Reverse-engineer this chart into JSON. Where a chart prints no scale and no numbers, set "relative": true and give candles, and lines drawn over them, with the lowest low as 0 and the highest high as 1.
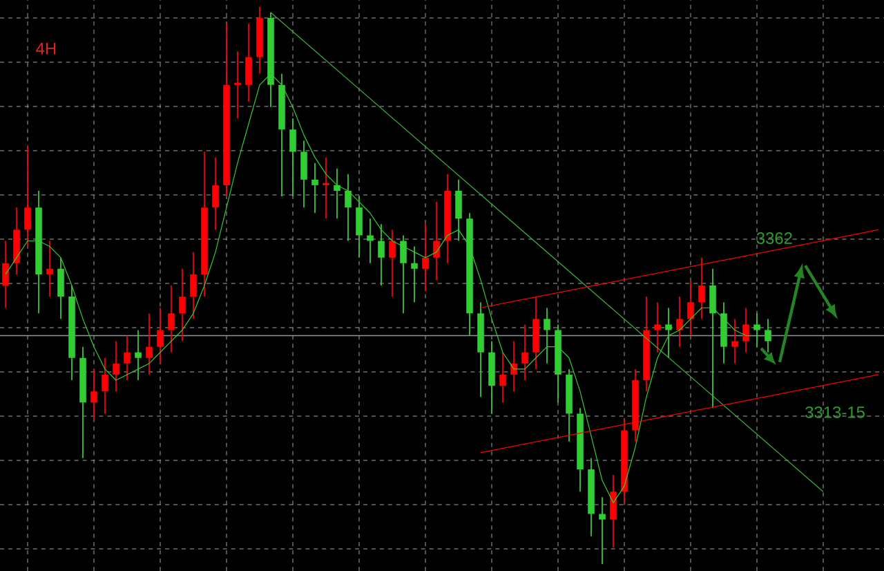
{
  "chart_data": {
    "type": "candlestick",
    "relative": true,
    "grid": true,
    "annotations": [
      "4H",
      "3362",
      "3313-15"
    ],
    "categories": [
      null,
      null,
      null,
      null,
      null,
      null,
      null,
      null,
      null,
      null,
      null,
      null,
      null,
      null,
      null,
      null,
      null,
      null,
      null,
      null,
      null,
      null,
      null,
      null,
      null,
      null,
      null,
      null,
      null,
      null,
      null,
      null,
      null,
      null,
      null,
      null,
      null,
      null,
      null,
      null,
      null,
      null,
      null,
      null,
      null,
      null,
      null,
      null,
      null,
      null,
      null,
      null,
      null,
      null,
      null,
      null,
      null,
      null,
      null,
      null,
      null,
      null,
      null,
      null,
      null,
      null,
      null,
      null,
      null,
      null,
      null,
      null,
      null,
      null,
      null,
      null,
      null,
      null,
      null,
      null
    ],
    "colors": [
      "#ff0000",
      "#ff0000",
      "#ff0000",
      "#32cd32",
      "#ff0000",
      "#32cd32",
      "#32cd32",
      "#32cd32",
      "#ff0000",
      "#ff0000",
      "#ff0000",
      "#ff0000",
      "#32cd32",
      "#ff0000",
      "#ff0000",
      "#ff0000",
      "#ff0000",
      "#ff0000",
      "#ff0000",
      "#ff0000",
      "#ff0000",
      "#ff0000",
      "#ff0000",
      "#ff0000",
      "#32cd32",
      "#32cd32",
      "#32cd32",
      "#32cd32",
      "#32cd32",
      "#ff0000",
      "#32cd32",
      "#32cd32",
      "#32cd32",
      "#32cd32",
      "#32cd32",
      "#ff0000",
      "#32cd32",
      "#32cd32",
      "#ff0000",
      "#ff0000",
      "#ff0000",
      "#32cd32",
      "#32cd32",
      "#32cd32",
      "#32cd32",
      "#ff0000",
      "#ff0000",
      "#ff0000",
      "#ff0000",
      "#32cd32",
      "#32cd32",
      "#32cd32",
      "#32cd32",
      "#32cd32",
      "#32cd32",
      "#ff0000",
      "#ff0000",
      "#ff0000",
      "#ff0000",
      "#ff0000",
      "#32cd32",
      "#ff0000",
      "#ff0000",
      "#ff0000",
      "#32cd32",
      "#32cd32",
      "#ff0000",
      "#ff0000",
      "#32cd32",
      "#32cd32",
      null,
      null,
      null,
      null,
      null,
      null,
      null,
      null,
      null,
      null
    ],
    "ohlc": [
      [
        0.5,
        0.58,
        0.46,
        0.54
      ],
      [
        0.54,
        0.64,
        0.52,
        0.6
      ],
      [
        0.6,
        0.75,
        0.57,
        0.64
      ],
      [
        0.64,
        0.67,
        0.45,
        0.52
      ],
      [
        0.52,
        0.58,
        0.48,
        0.53
      ],
      [
        0.53,
        0.55,
        0.44,
        0.48
      ],
      [
        0.48,
        0.5,
        0.33,
        0.37
      ],
      [
        0.37,
        0.39,
        0.19,
        0.29
      ],
      [
        0.29,
        0.35,
        0.26,
        0.31
      ],
      [
        0.31,
        0.37,
        0.27,
        0.34
      ],
      [
        0.34,
        0.4,
        0.31,
        0.36
      ],
      [
        0.36,
        0.41,
        0.33,
        0.38
      ],
      [
        0.38,
        0.42,
        0.33,
        0.37
      ],
      [
        0.37,
        0.45,
        0.34,
        0.39
      ],
      [
        0.39,
        0.46,
        0.36,
        0.42
      ],
      [
        0.42,
        0.5,
        0.38,
        0.45
      ],
      [
        0.45,
        0.53,
        0.4,
        0.48
      ],
      [
        0.48,
        0.56,
        0.44,
        0.52
      ],
      [
        0.52,
        0.74,
        0.48,
        0.64
      ],
      [
        0.64,
        0.73,
        0.6,
        0.68
      ],
      [
        0.68,
        0.97,
        0.66,
        0.86
      ],
      [
        0.86,
        0.92,
        0.8,
        0.86
      ],
      [
        0.86,
        0.97,
        0.83,
        0.91
      ],
      [
        0.91,
        1.0,
        0.88,
        0.98
      ],
      [
        0.98,
        0.99,
        0.82,
        0.86
      ],
      [
        0.86,
        0.88,
        0.66,
        0.78
      ],
      [
        0.78,
        0.8,
        0.66,
        0.74
      ],
      [
        0.74,
        0.76,
        0.64,
        0.69
      ],
      [
        0.69,
        0.72,
        0.63,
        0.68
      ],
      [
        0.68,
        0.73,
        0.62,
        0.68
      ],
      [
        0.68,
        0.71,
        0.62,
        0.67
      ],
      [
        0.67,
        0.7,
        0.58,
        0.64
      ],
      [
        0.64,
        0.66,
        0.55,
        0.59
      ],
      [
        0.59,
        0.62,
        0.54,
        0.58
      ],
      [
        0.58,
        0.61,
        0.5,
        0.55
      ],
      [
        0.55,
        0.6,
        0.48,
        0.58
      ],
      [
        0.58,
        0.59,
        0.45,
        0.54
      ],
      [
        0.54,
        0.57,
        0.47,
        0.53
      ],
      [
        0.53,
        0.61,
        0.49,
        0.55
      ],
      [
        0.55,
        0.65,
        0.51,
        0.58
      ],
      [
        0.58,
        0.7,
        0.54,
        0.67
      ],
      [
        0.67,
        0.69,
        0.58,
        0.62
      ],
      [
        0.62,
        0.63,
        0.41,
        0.45
      ],
      [
        0.45,
        0.47,
        0.3,
        0.38
      ],
      [
        0.38,
        0.4,
        0.27,
        0.32
      ],
      [
        0.32,
        0.38,
        0.29,
        0.34
      ],
      [
        0.34,
        0.4,
        0.31,
        0.36
      ],
      [
        0.36,
        0.43,
        0.33,
        0.38
      ],
      [
        0.38,
        0.48,
        0.35,
        0.44
      ],
      [
        0.44,
        0.46,
        0.36,
        0.42
      ],
      [
        0.42,
        0.43,
        0.29,
        0.34
      ],
      [
        0.34,
        0.35,
        0.22,
        0.27
      ],
      [
        0.27,
        0.28,
        0.13,
        0.17
      ],
      [
        0.17,
        0.19,
        0.05,
        0.09
      ],
      [
        0.09,
        0.12,
        0.0,
        0.08
      ],
      [
        0.08,
        0.16,
        0.03,
        0.13
      ],
      [
        0.13,
        0.26,
        0.11,
        0.24
      ],
      [
        0.24,
        0.35,
        0.22,
        0.33
      ],
      [
        0.33,
        0.48,
        0.31,
        0.42
      ],
      [
        0.42,
        0.47,
        0.38,
        0.43
      ],
      [
        0.43,
        0.46,
        0.37,
        0.42
      ],
      [
        0.42,
        0.48,
        0.39,
        0.44
      ],
      [
        0.44,
        0.51,
        0.41,
        0.47
      ],
      [
        0.47,
        0.55,
        0.44,
        0.5
      ],
      [
        0.5,
        0.53,
        0.28,
        0.45
      ],
      [
        0.45,
        0.47,
        0.36,
        0.39
      ],
      [
        0.39,
        0.44,
        0.36,
        0.4
      ],
      [
        0.4,
        0.46,
        0.38,
        0.43
      ],
      [
        0.43,
        0.45,
        0.39,
        0.42
      ],
      [
        0.42,
        0.44,
        0.38,
        0.4
      ],
      null,
      null,
      null,
      null,
      null,
      null,
      null,
      null,
      null,
      null
    ],
    "ref_lines": [
      {
        "axis": "y",
        "value": 0.41,
        "color": "#8c96a0"
      }
    ],
    "series": [
      {
        "type": "line",
        "color": "#32cd32",
        "values": [
          0.52,
          0.55,
          0.58,
          0.58,
          0.57,
          0.55,
          0.5,
          0.44,
          0.39,
          0.35,
          0.33,
          0.34,
          0.35,
          0.36,
          0.38,
          0.4,
          0.42,
          0.45,
          0.5,
          0.56,
          0.64,
          0.72,
          0.79,
          0.86,
          0.88,
          0.86,
          0.82,
          0.77,
          0.73,
          0.7,
          0.68,
          0.67,
          0.65,
          0.63,
          0.6,
          0.58,
          0.57,
          0.56,
          0.55,
          0.56,
          0.59,
          0.6,
          0.57,
          0.51,
          0.44,
          0.38,
          0.35,
          0.35,
          0.37,
          0.39,
          0.39,
          0.37,
          0.31,
          0.23,
          0.15,
          0.11,
          0.14,
          0.21,
          0.3,
          0.37,
          0.41,
          0.42,
          0.44,
          0.46,
          0.46,
          0.44,
          0.42,
          0.41,
          0.41,
          0.41,
          null,
          null,
          null,
          null,
          null,
          null,
          null,
          null,
          null,
          null
        ]
      },
      {
        "type": "line",
        "color": "#3cb43c",
        "values": [
          null,
          null,
          null,
          null,
          null,
          null,
          null,
          null,
          null,
          null,
          null,
          null,
          null,
          null,
          null,
          null,
          null,
          null,
          null,
          null,
          null,
          null,
          null,
          null,
          0.99,
          null,
          null,
          null,
          null,
          null,
          null,
          null,
          null,
          null,
          null,
          null,
          null,
          null,
          null,
          null,
          null,
          null,
          null,
          null,
          null,
          null,
          null,
          null,
          null,
          null,
          null,
          null,
          null,
          null,
          null,
          null,
          null,
          null,
          null,
          null,
          null,
          null,
          null,
          null,
          null,
          null,
          null,
          null,
          null,
          null,
          null,
          null,
          null,
          null,
          0.13,
          null,
          null,
          null,
          null,
          null
        ]
      },
      {
        "type": "line",
        "color": "#ff0000",
        "values": [
          null,
          null,
          null,
          null,
          null,
          null,
          null,
          null,
          null,
          null,
          null,
          null,
          null,
          null,
          null,
          null,
          null,
          null,
          null,
          null,
          null,
          null,
          null,
          null,
          null,
          null,
          null,
          null,
          null,
          null,
          null,
          null,
          null,
          null,
          null,
          null,
          null,
          null,
          null,
          null,
          null,
          null,
          null,
          0.46,
          null,
          null,
          null,
          null,
          null,
          null,
          null,
          null,
          null,
          null,
          null,
          null,
          null,
          null,
          null,
          null,
          null,
          null,
          null,
          null,
          null,
          null,
          null,
          null,
          null,
          null,
          null,
          null,
          null,
          null,
          null,
          null,
          null,
          null,
          null,
          0.6
        ]
      },
      {
        "type": "line",
        "color": "#ff0000",
        "values": [
          null,
          null,
          null,
          null,
          null,
          null,
          null,
          null,
          null,
          null,
          null,
          null,
          null,
          null,
          null,
          null,
          null,
          null,
          null,
          null,
          null,
          null,
          null,
          null,
          null,
          null,
          null,
          null,
          null,
          null,
          null,
          null,
          null,
          null,
          null,
          null,
          null,
          null,
          null,
          null,
          null,
          null,
          null,
          0.2,
          null,
          null,
          null,
          null,
          null,
          null,
          null,
          null,
          null,
          null,
          null,
          null,
          null,
          null,
          null,
          null,
          null,
          null,
          null,
          null,
          null,
          null,
          null,
          null,
          null,
          null,
          null,
          null,
          null,
          null,
          null,
          null,
          null,
          null,
          null,
          0.34
        ]
      }
    ]
  }
}
